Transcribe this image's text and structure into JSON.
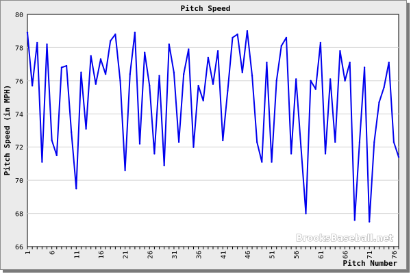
{
  "chart_data": {
    "type": "line",
    "title": "Pitch Speed",
    "xlabel": "Pitch Number",
    "ylabel": "Pitch Speed (in MPH)",
    "xlim": [
      1,
      77
    ],
    "ylim": [
      66,
      80
    ],
    "y_ticks": [
      66,
      68,
      70,
      72,
      74,
      76,
      78,
      80
    ],
    "x_ticks": [
      1,
      6,
      11,
      16,
      21,
      26,
      31,
      36,
      41,
      46,
      51,
      56,
      61,
      66,
      71,
      76
    ],
    "grid": true,
    "line_color": "#0000ee",
    "x": [
      1,
      2,
      3,
      4,
      5,
      6,
      7,
      8,
      9,
      10,
      11,
      12,
      13,
      14,
      15,
      16,
      17,
      18,
      19,
      20,
      21,
      22,
      23,
      24,
      25,
      26,
      27,
      28,
      29,
      30,
      31,
      32,
      33,
      34,
      35,
      36,
      37,
      38,
      39,
      40,
      41,
      42,
      43,
      44,
      45,
      46,
      47,
      48,
      49,
      50,
      51,
      52,
      53,
      54,
      55,
      56,
      57,
      58,
      59,
      60,
      61,
      62,
      63,
      64,
      65,
      66,
      67,
      68,
      69,
      70,
      71,
      72,
      73,
      74,
      75,
      76,
      77
    ],
    "y": [
      78.9,
      75.7,
      78.3,
      71.1,
      78.2,
      72.4,
      71.5,
      76.8,
      76.9,
      72.9,
      69.5,
      76.5,
      73.1,
      77.5,
      75.8,
      77.3,
      76.4,
      78.4,
      78.8,
      76.0,
      70.6,
      76.4,
      78.9,
      72.2,
      77.7,
      75.7,
      71.6,
      76.3,
      70.9,
      78.2,
      76.5,
      72.3,
      76.4,
      77.9,
      72.0,
      75.7,
      74.8,
      77.4,
      75.8,
      77.8,
      72.4,
      75.4,
      78.6,
      78.8,
      76.5,
      79.0,
      76.3,
      72.3,
      71.1,
      77.1,
      71.1,
      76.0,
      78.1,
      78.6,
      71.6,
      76.1,
      72.0,
      68.0,
      76.0,
      75.5,
      78.3,
      71.6,
      76.1,
      72.3,
      77.8,
      76.0,
      77.1,
      67.6,
      72.3,
      76.8,
      67.5,
      72.3,
      74.7,
      75.6,
      77.1,
      72.3,
      71.4
    ]
  },
  "watermark": "BrooksBaseball.net"
}
